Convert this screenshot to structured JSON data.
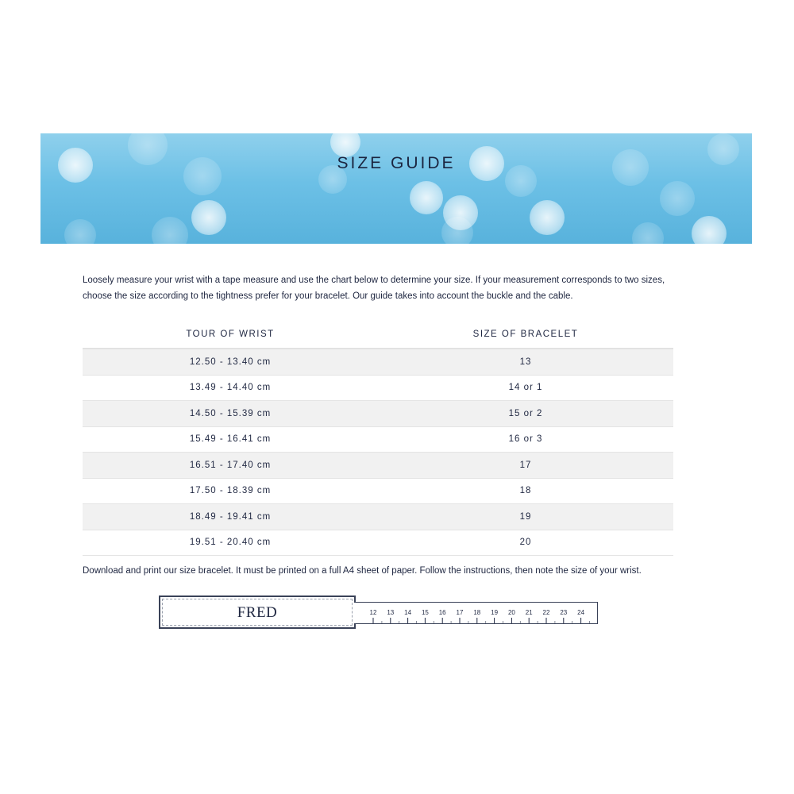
{
  "banner": {
    "title": "SIZE GUIDE"
  },
  "intro": "Loosely measure your wrist with a tape measure and use the chart below to determine your size. If your measurement corresponds to two sizes, choose the size according to the tightness prefer for your bracelet. Our guide takes into account the buckle and the cable.",
  "table": {
    "headers": [
      "TOUR OF WRIST",
      "SIZE OF BRACELET"
    ],
    "rows": [
      [
        "12.50 - 13.40 cm",
        "13"
      ],
      [
        "13.49 - 14.40 cm",
        "14 or 1"
      ],
      [
        "14.50 - 15.39 cm",
        "15 or 2"
      ],
      [
        "15.49 - 16.41 cm",
        "16 or 3"
      ],
      [
        "16.51 - 17.40 cm",
        "17"
      ],
      [
        "17.50 - 18.39 cm",
        "18"
      ],
      [
        "18.49 - 19.41 cm",
        "19"
      ],
      [
        "19.51 - 20.40 cm",
        "20"
      ]
    ]
  },
  "download_text": "Download and print our size bracelet. It must be printed on a full A4 sheet of paper. Follow the instructions, then note the size of your wrist.",
  "size_bracelet": {
    "logo": "FRED",
    "ruler_labels": [
      "12",
      "13",
      "14",
      "15",
      "16",
      "17",
      "18",
      "19",
      "20",
      "21",
      "22",
      "23",
      "24"
    ]
  }
}
